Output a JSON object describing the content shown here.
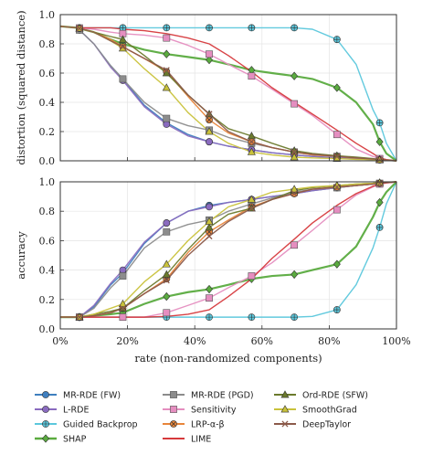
{
  "chart_data": [
    {
      "type": "line",
      "panel": "top",
      "ylabel": "distortion (squared distance)",
      "xlabel": "",
      "xlim": [
        0,
        100
      ],
      "ylim": [
        0,
        1.0
      ],
      "yticks": [
        "0.0",
        "0.2",
        "0.4",
        "0.6",
        "0.8",
        "1.0"
      ],
      "grid": true,
      "x": [
        0,
        5,
        10,
        15,
        18.6,
        25,
        31.6,
        38,
        44.3,
        50,
        56.9,
        63,
        69.6,
        75,
        82.3,
        88,
        93,
        95,
        97,
        100
      ],
      "series": [
        {
          "name": "MR-RDE (FW)",
          "values": [
            0.92,
            0.91,
            0.8,
            0.65,
            0.56,
            0.38,
            0.26,
            0.18,
            0.13,
            0.1,
            0.075,
            0.055,
            0.04,
            0.03,
            0.02,
            0.013,
            0.008,
            0.006,
            0.003,
            0.0
          ]
        },
        {
          "name": "L-RDE",
          "values": [
            0.92,
            0.91,
            0.8,
            0.64,
            0.55,
            0.37,
            0.25,
            0.17,
            0.13,
            0.1,
            0.075,
            0.055,
            0.04,
            0.03,
            0.02,
            0.013,
            0.008,
            0.006,
            0.003,
            0.0
          ]
        },
        {
          "name": "Guided Backprop",
          "values": [
            0.92,
            0.91,
            0.91,
            0.91,
            0.91,
            0.91,
            0.91,
            0.91,
            0.91,
            0.91,
            0.91,
            0.91,
            0.91,
            0.9,
            0.83,
            0.66,
            0.35,
            0.26,
            0.12,
            0.0
          ]
        },
        {
          "name": "SHAP",
          "values": [
            0.92,
            0.91,
            0.88,
            0.83,
            0.8,
            0.76,
            0.73,
            0.71,
            0.69,
            0.66,
            0.62,
            0.6,
            0.58,
            0.56,
            0.5,
            0.4,
            0.25,
            0.13,
            0.05,
            0.0
          ]
        },
        {
          "name": "MR-RDE (PGD)",
          "values": [
            0.92,
            0.91,
            0.8,
            0.65,
            0.56,
            0.4,
            0.29,
            0.24,
            0.21,
            0.16,
            0.12,
            0.09,
            0.06,
            0.04,
            0.03,
            0.02,
            0.012,
            0.008,
            0.004,
            0.0
          ]
        },
        {
          "name": "Sensitivity",
          "values": [
            0.92,
            0.91,
            0.9,
            0.88,
            0.87,
            0.86,
            0.84,
            0.79,
            0.73,
            0.66,
            0.58,
            0.49,
            0.39,
            0.31,
            0.18,
            0.08,
            0.03,
            0.015,
            0.006,
            0.0
          ]
        },
        {
          "name": "LRP-α-β",
          "values": [
            0.92,
            0.91,
            0.88,
            0.83,
            0.78,
            0.7,
            0.61,
            0.44,
            0.28,
            0.19,
            0.13,
            0.09,
            0.06,
            0.04,
            0.03,
            0.02,
            0.012,
            0.008,
            0.004,
            0.0
          ]
        },
        {
          "name": "LIME",
          "values": [
            0.92,
            0.91,
            0.91,
            0.91,
            0.9,
            0.89,
            0.87,
            0.84,
            0.8,
            0.72,
            0.61,
            0.5,
            0.4,
            0.32,
            0.21,
            0.12,
            0.05,
            0.02,
            0.008,
            0.0
          ]
        },
        {
          "name": "Ord-RDE (SFW)",
          "values": [
            0.92,
            0.91,
            0.88,
            0.85,
            0.83,
            0.72,
            0.6,
            0.45,
            0.32,
            0.22,
            0.17,
            0.12,
            0.07,
            0.05,
            0.035,
            0.025,
            0.015,
            0.01,
            0.005,
            0.0
          ]
        },
        {
          "name": "SmoothGrad",
          "values": [
            0.92,
            0.91,
            0.88,
            0.82,
            0.77,
            0.63,
            0.5,
            0.33,
            0.2,
            0.12,
            0.06,
            0.04,
            0.025,
            0.02,
            0.015,
            0.01,
            0.008,
            0.006,
            0.003,
            0.0
          ]
        },
        {
          "name": "DeepTaylor",
          "values": [
            0.92,
            0.91,
            0.88,
            0.82,
            0.78,
            0.7,
            0.62,
            0.45,
            0.32,
            0.2,
            0.13,
            0.09,
            0.06,
            0.045,
            0.03,
            0.02,
            0.012,
            0.008,
            0.004,
            0.0
          ]
        }
      ]
    },
    {
      "type": "line",
      "panel": "bottom",
      "ylabel": "accuracy",
      "xlabel": "rate (non-randomized components)",
      "xlim": [
        0,
        100
      ],
      "ylim": [
        0,
        1.0
      ],
      "yticks": [
        "0.0",
        "0.2",
        "0.4",
        "0.6",
        "0.8",
        "1.0"
      ],
      "xticks": [
        "0%",
        "20%",
        "40%",
        "60%",
        "80%",
        "100%"
      ],
      "grid": true,
      "x": [
        0,
        5.7,
        10,
        15,
        18.6,
        25,
        31.6,
        38,
        44.3,
        50,
        56.9,
        63,
        69.6,
        75,
        82.3,
        88,
        93,
        95,
        97,
        100
      ],
      "series": [
        {
          "name": "MR-RDE (FW)",
          "values": [
            0.08,
            0.08,
            0.15,
            0.3,
            0.38,
            0.58,
            0.72,
            0.8,
            0.84,
            0.86,
            0.88,
            0.9,
            0.92,
            0.94,
            0.96,
            0.975,
            0.985,
            0.99,
            0.995,
            1.0
          ]
        },
        {
          "name": "L-RDE",
          "values": [
            0.08,
            0.08,
            0.16,
            0.31,
            0.4,
            0.59,
            0.72,
            0.8,
            0.83,
            0.86,
            0.88,
            0.9,
            0.92,
            0.94,
            0.96,
            0.975,
            0.985,
            0.99,
            0.995,
            1.0
          ]
        },
        {
          "name": "Guided Backprop",
          "values": [
            0.08,
            0.08,
            0.08,
            0.08,
            0.08,
            0.08,
            0.08,
            0.08,
            0.08,
            0.08,
            0.08,
            0.08,
            0.08,
            0.085,
            0.13,
            0.3,
            0.55,
            0.69,
            0.85,
            1.0
          ]
        },
        {
          "name": "SHAP",
          "values": [
            0.08,
            0.08,
            0.09,
            0.1,
            0.11,
            0.17,
            0.22,
            0.25,
            0.27,
            0.3,
            0.34,
            0.36,
            0.37,
            0.4,
            0.44,
            0.56,
            0.76,
            0.86,
            0.93,
            1.0
          ]
        },
        {
          "name": "MR-RDE (PGD)",
          "values": [
            0.08,
            0.08,
            0.14,
            0.28,
            0.36,
            0.55,
            0.66,
            0.71,
            0.74,
            0.8,
            0.85,
            0.89,
            0.93,
            0.95,
            0.96,
            0.975,
            0.985,
            0.99,
            0.995,
            1.0
          ]
        },
        {
          "name": "Sensitivity",
          "values": [
            0.08,
            0.08,
            0.08,
            0.08,
            0.08,
            0.08,
            0.11,
            0.16,
            0.21,
            0.28,
            0.36,
            0.45,
            0.57,
            0.67,
            0.81,
            0.91,
            0.965,
            0.985,
            0.993,
            1.0
          ]
        },
        {
          "name": "LRP-α-β",
          "values": [
            0.08,
            0.08,
            0.09,
            0.11,
            0.14,
            0.24,
            0.34,
            0.52,
            0.66,
            0.74,
            0.83,
            0.88,
            0.92,
            0.95,
            0.965,
            0.975,
            0.985,
            0.99,
            0.995,
            1.0
          ]
        },
        {
          "name": "LIME",
          "values": [
            0.08,
            0.08,
            0.08,
            0.08,
            0.08,
            0.08,
            0.085,
            0.1,
            0.13,
            0.22,
            0.34,
            0.48,
            0.61,
            0.72,
            0.84,
            0.92,
            0.97,
            0.985,
            0.993,
            1.0
          ]
        },
        {
          "name": "Ord-RDE (SFW)",
          "values": [
            0.08,
            0.08,
            0.1,
            0.12,
            0.14,
            0.26,
            0.37,
            0.54,
            0.69,
            0.78,
            0.82,
            0.88,
            0.94,
            0.96,
            0.975,
            0.985,
            0.99,
            0.994,
            0.997,
            1.0
          ]
        },
        {
          "name": "SmoothGrad",
          "values": [
            0.08,
            0.08,
            0.1,
            0.14,
            0.17,
            0.32,
            0.44,
            0.6,
            0.73,
            0.83,
            0.88,
            0.93,
            0.95,
            0.965,
            0.975,
            0.985,
            0.99,
            0.994,
            0.997,
            1.0
          ]
        },
        {
          "name": "DeepTaylor",
          "values": [
            0.08,
            0.08,
            0.09,
            0.11,
            0.14,
            0.24,
            0.33,
            0.5,
            0.63,
            0.73,
            0.82,
            0.88,
            0.92,
            0.95,
            0.965,
            0.975,
            0.985,
            0.99,
            0.995,
            1.0
          ]
        }
      ]
    }
  ],
  "legend": {
    "placement": "bottom",
    "entries": [
      {
        "name": "MR-RDE (FW)",
        "color": "#3f7fbf",
        "marker": "circle"
      },
      {
        "name": "MR-RDE (PGD)",
        "color": "#8c8c8c",
        "marker": "square"
      },
      {
        "name": "Ord-RDE (SFW)",
        "color": "#6b7a2c",
        "marker": "triangle"
      },
      {
        "name": "L-RDE",
        "color": "#8a6bbf",
        "marker": "circle"
      },
      {
        "name": "Sensitivity",
        "color": "#e58ec0",
        "marker": "square"
      },
      {
        "name": "SmoothGrad",
        "color": "#c9c23b",
        "marker": "triangle"
      },
      {
        "name": "Guided Backprop",
        "color": "#5bc7dc",
        "marker": "circle-plus"
      },
      {
        "name": "LRP-α-β",
        "color": "#e8853a",
        "marker": "circle-x"
      },
      {
        "name": "DeepTaylor",
        "color": "#8b5a4a",
        "marker": "x"
      },
      {
        "name": "SHAP",
        "color": "#5aab3f",
        "marker": "diamond"
      },
      {
        "name": "LIME",
        "color": "#d6393c",
        "marker": "none"
      }
    ]
  }
}
